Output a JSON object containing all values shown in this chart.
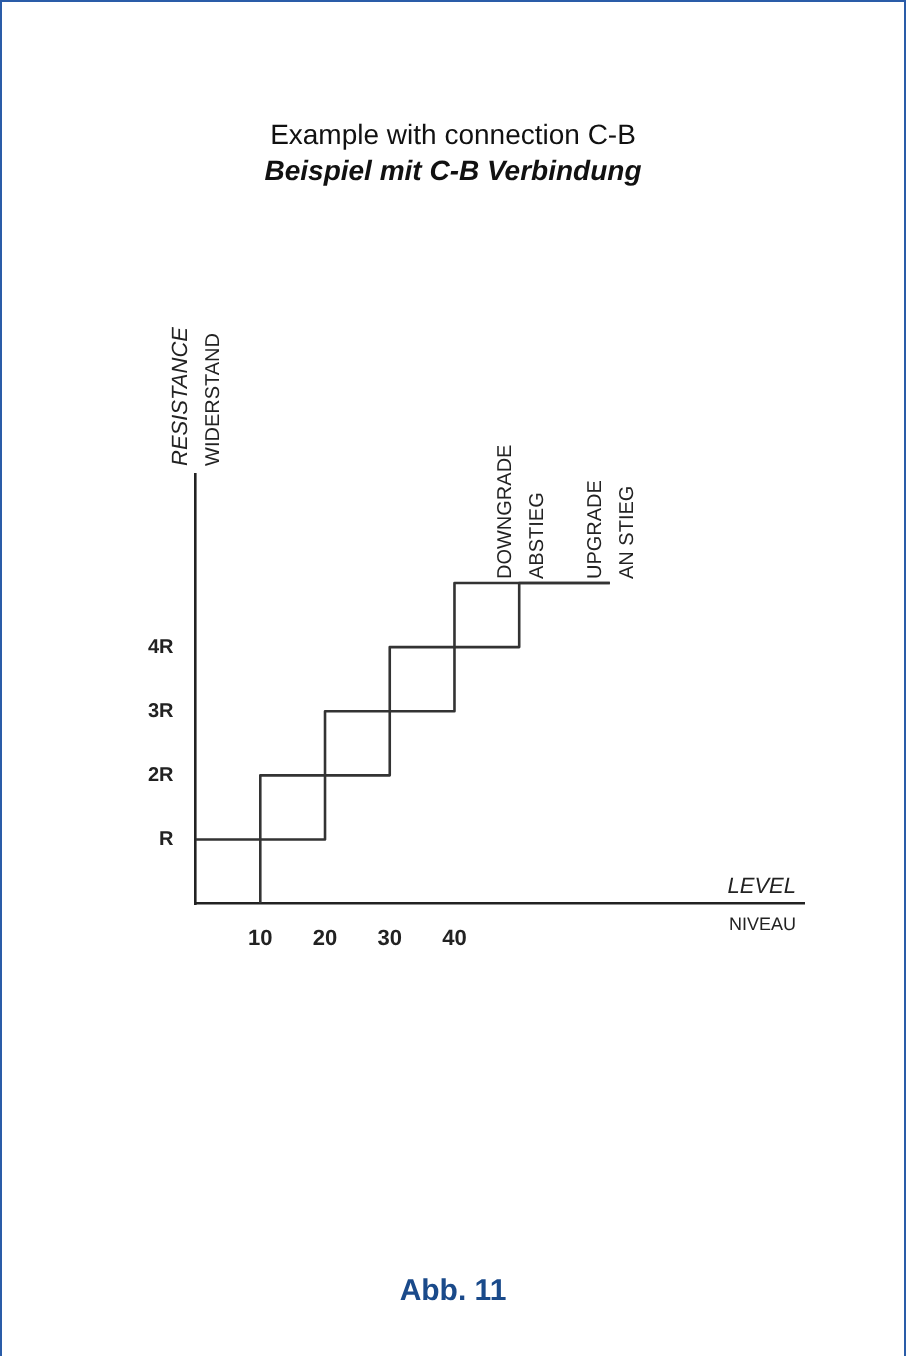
{
  "chart_data": {
    "type": "line",
    "title": "Example with connection C-B",
    "subtitle": "Beispiel mit C-B Verbindung",
    "xlabel": "LEVEL\nNIVEAU",
    "ylabel": "RESISTANCE\nWIDERSTAND",
    "series": [
      {
        "color": "#333333",
        "x": [
          10,
          10,
          20,
          20,
          30,
          30,
          40,
          40,
          64
        ],
        "values": [
          0,
          2,
          2,
          3,
          3,
          4,
          4,
          5,
          5
        ]
      },
      {
        "color": "#333333",
        "x": [
          0,
          20,
          20,
          30,
          30,
          40,
          40,
          50,
          50,
          64
        ],
        "values": [
          1,
          1,
          2,
          2,
          3,
          3,
          4,
          4,
          5,
          5
        ]
      }
    ],
    "xlim": [
      0,
      94
    ],
    "xticks": [
      10,
      20,
      30,
      40
    ],
    "ylim": [
      0,
      6.7
    ],
    "yticks": [
      {
        "value": 1,
        "label": "R"
      },
      {
        "value": 2,
        "label": "2R"
      },
      {
        "value": 3,
        "label": "3R"
      },
      {
        "value": 4,
        "label": "4R"
      }
    ],
    "grid": false,
    "legend": false,
    "marker": "none",
    "line_style": "solid",
    "annotations": [
      {
        "text": "DOWNGRADE\nABSTIEG",
        "x": 50,
        "y": 5
      },
      {
        "text": "UPGRADE\nAN STIEG",
        "x": 64,
        "y": 5
      },
      "Abb. 11"
    ]
  }
}
